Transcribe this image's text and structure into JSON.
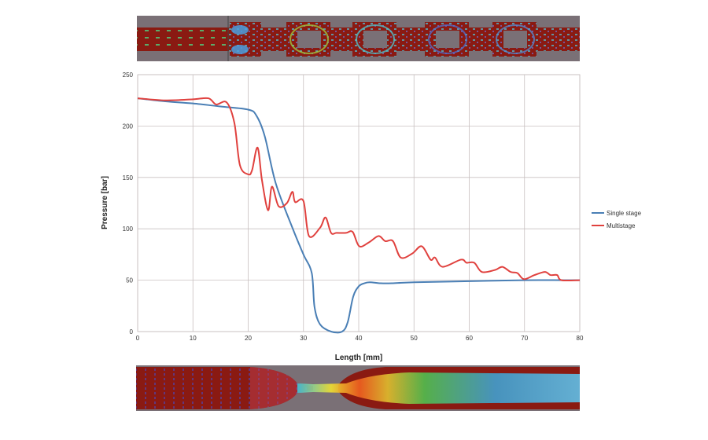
{
  "chart_data": {
    "type": "line",
    "title": "",
    "xlabel": "Length [mm]",
    "ylabel": "Pressure [bar]",
    "xlim": [
      0,
      80
    ],
    "ylim": [
      0,
      250
    ],
    "xticks": [
      0,
      10,
      20,
      30,
      40,
      50,
      60,
      70,
      80
    ],
    "yticks": [
      0,
      50,
      100,
      150,
      200,
      250
    ],
    "grid": true,
    "legend": "right",
    "series": [
      {
        "name": "Single stage",
        "color": "#4a7fb5",
        "x": [
          0,
          5,
          10,
          15,
          20,
          21.5,
          23,
          25,
          28,
          30,
          31.5,
          32,
          33,
          35,
          37,
          38,
          39,
          40,
          41,
          42,
          44,
          46,
          50,
          60,
          70,
          77,
          80
        ],
        "y": [
          227,
          224,
          222,
          219,
          216,
          210,
          190,
          144,
          101,
          75,
          57,
          24,
          7,
          0,
          0,
          9,
          34,
          44,
          47,
          48,
          47,
          47,
          48,
          49,
          50,
          50,
          50
        ]
      },
      {
        "name": "Multistage",
        "color": "#e0413e",
        "x": [
          0,
          5,
          10,
          12.8,
          14.2,
          16.1,
          17.5,
          18.5,
          20,
          20.7,
          21.7,
          22.5,
          23.6,
          24.3,
          25.5,
          27,
          28,
          28.5,
          30,
          31,
          33,
          34,
          35,
          36,
          37.7,
          38.9,
          40.1,
          41.9,
          43.6,
          44.8,
          46.2,
          47.6,
          49.7,
          51.4,
          53.0,
          53.8,
          55.2,
          58.5,
          59.5,
          60.9,
          62.3,
          64.7,
          66.0,
          67.5,
          68.7,
          69.9,
          71.8,
          73.7,
          74.7,
          75.9,
          76.7,
          80
        ],
        "y": [
          227,
          225,
          226,
          227,
          221,
          223,
          203,
          162,
          153,
          157,
          179,
          147,
          118,
          141,
          122,
          125,
          136,
          126,
          127,
          93,
          101,
          111,
          96,
          96,
          96,
          97,
          83,
          87,
          93,
          88,
          88,
          72,
          76,
          83,
          70,
          72,
          63,
          70,
          67,
          67,
          58,
          60,
          63,
          58,
          57,
          51,
          55,
          58,
          55,
          55,
          50,
          50
        ]
      }
    ]
  }
}
